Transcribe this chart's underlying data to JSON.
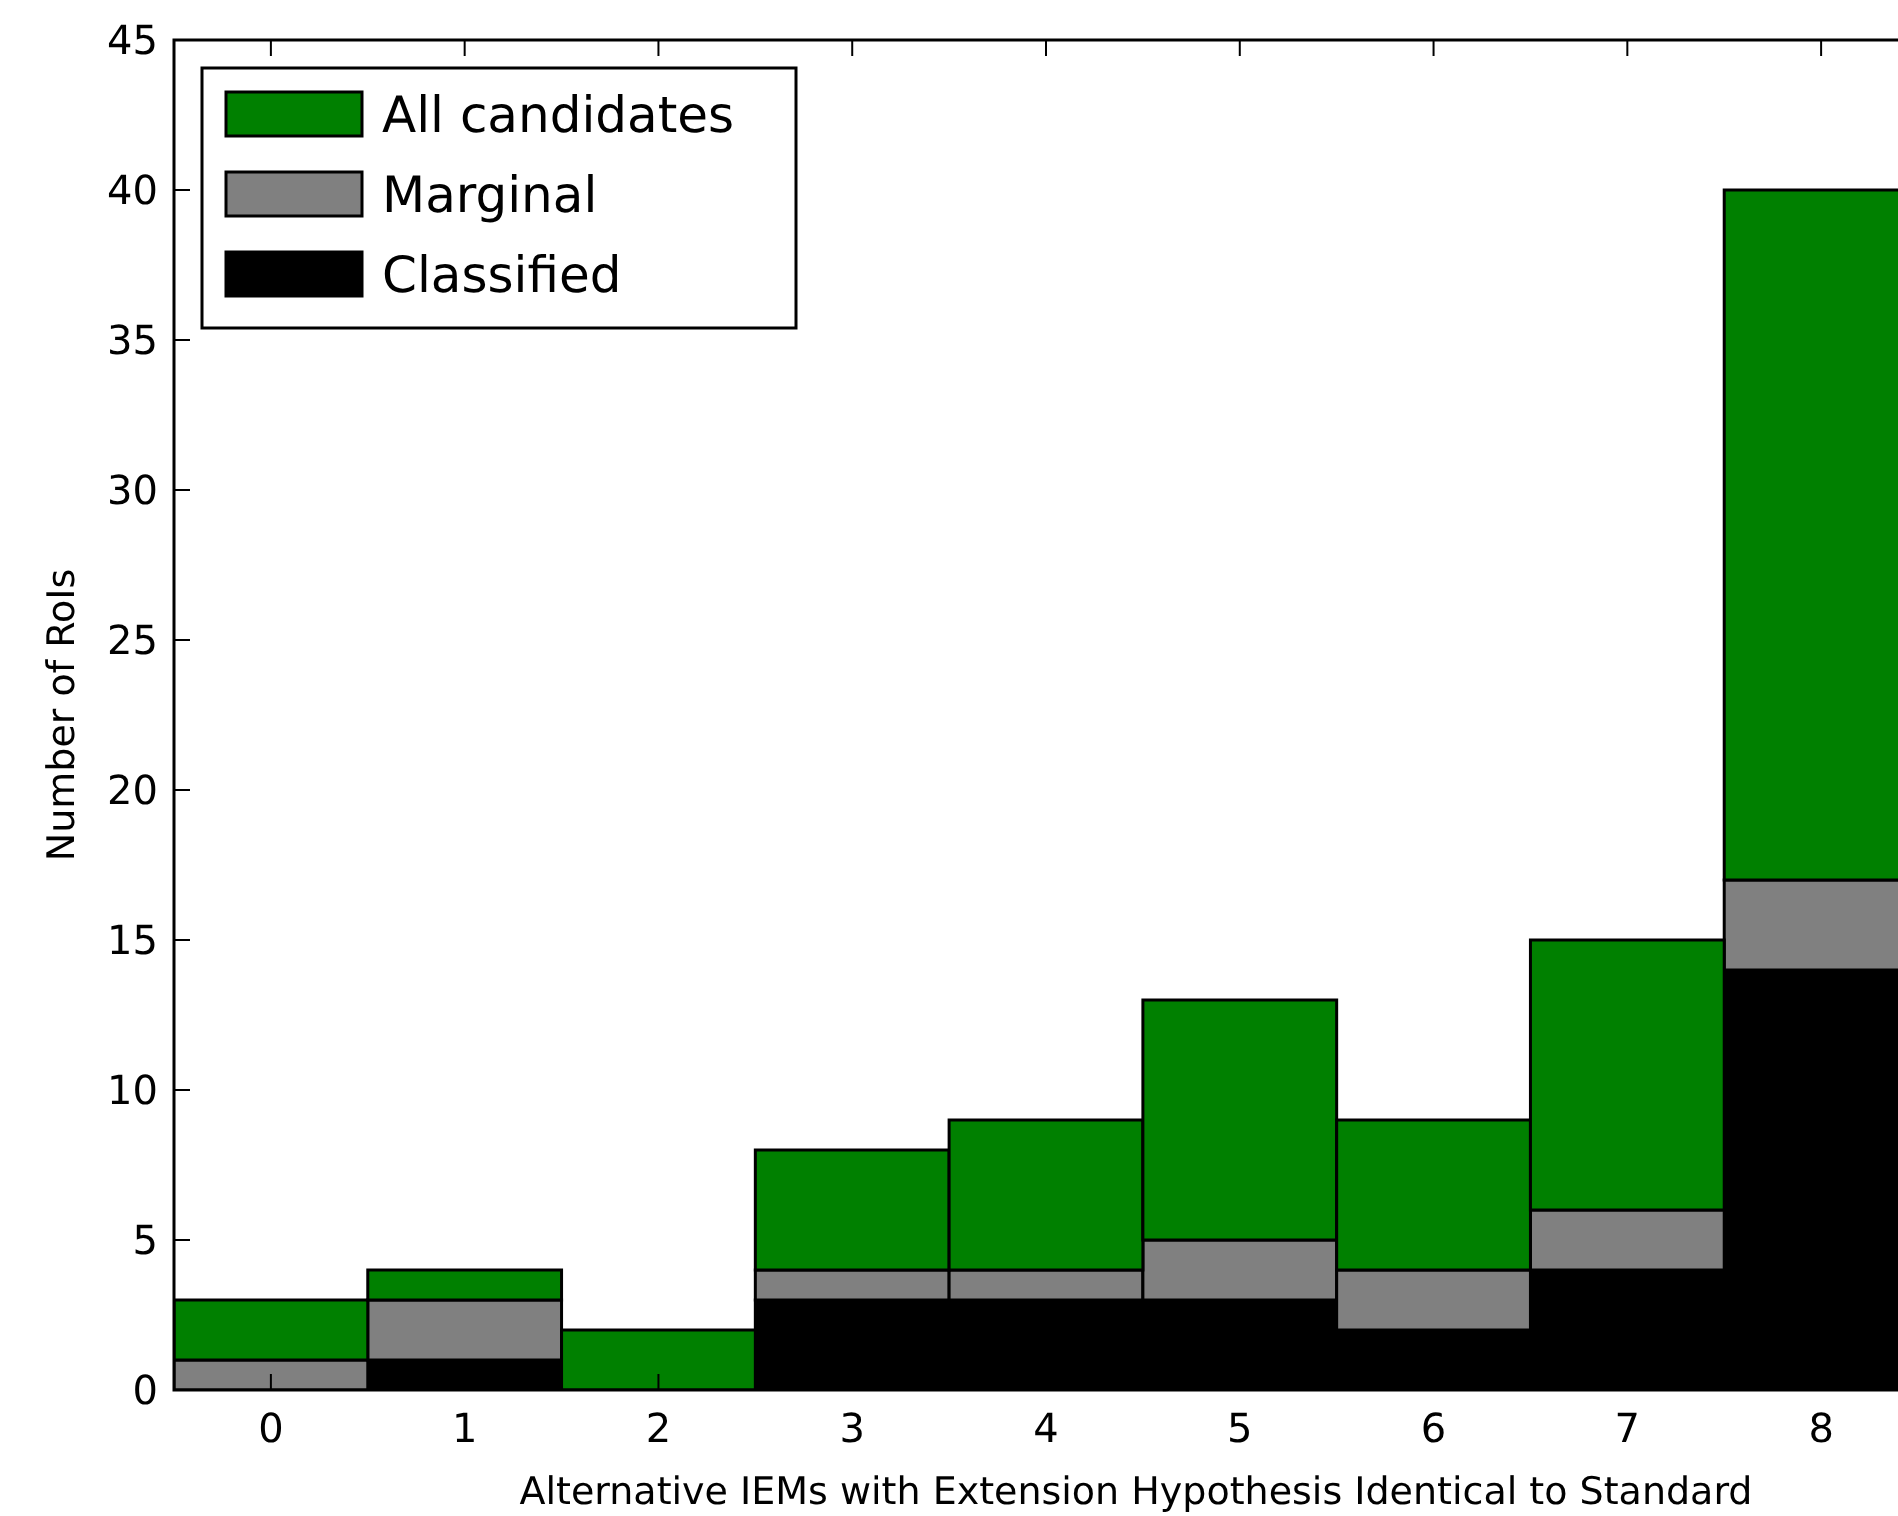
{
  "chart_data": {
    "type": "bar",
    "stacked": true,
    "xlabel": "Alternative IEMs with Extension Hypothesis Identical to Standard",
    "ylabel": "Number of RoIs",
    "categories": [
      "0",
      "1",
      "2",
      "3",
      "4",
      "5",
      "6",
      "7",
      "8"
    ],
    "series": [
      {
        "name": "Classified",
        "color": "#000000",
        "values": [
          0,
          1,
          0,
          3,
          3,
          3,
          2,
          4,
          14
        ]
      },
      {
        "name": "Marginal",
        "color": "#808080",
        "values": [
          1,
          2,
          0,
          1,
          1,
          2,
          2,
          2,
          3
        ]
      },
      {
        "name": "All candidates",
        "color": "#008000",
        "values": [
          2,
          1,
          2,
          4,
          5,
          8,
          5,
          9,
          23
        ]
      }
    ],
    "ylim": [
      0,
      45
    ],
    "yticks": [
      0,
      5,
      10,
      15,
      20,
      25,
      30,
      35,
      40,
      45
    ],
    "grid": false,
    "legend": "top left"
  }
}
